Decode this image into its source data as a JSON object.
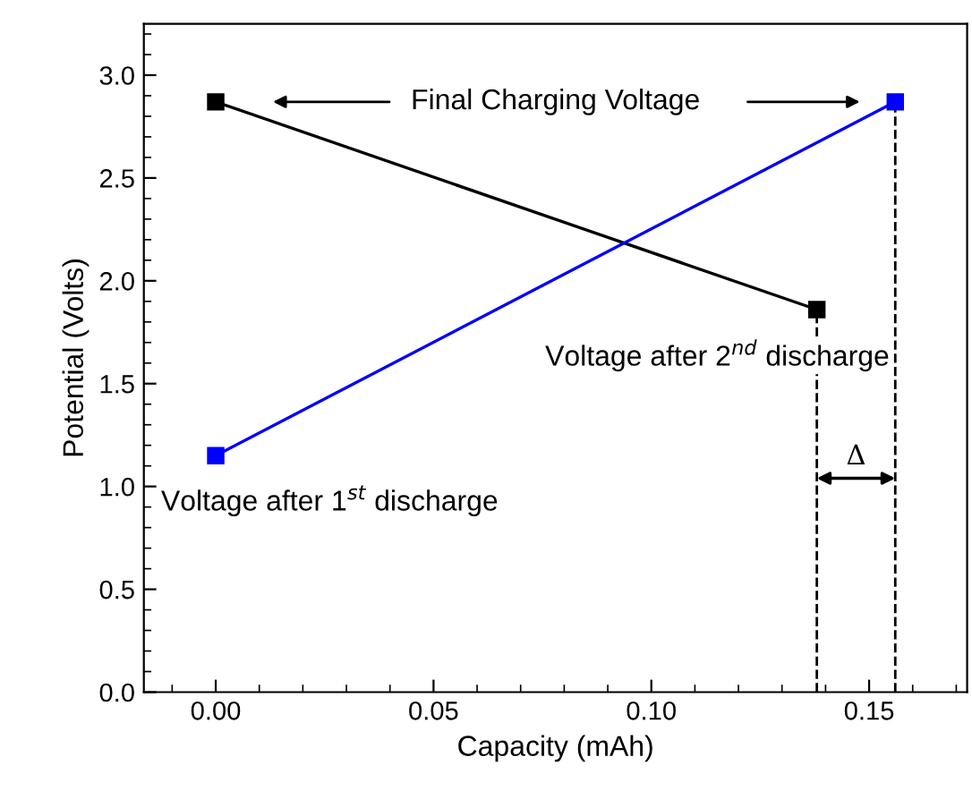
{
  "chart_data": {
    "type": "line",
    "xlabel": "Capacity (mAh)",
    "ylabel": "Potential (Volts)",
    "xlim": [
      -0.0165,
      0.1725
    ],
    "ylim": [
      0,
      3.25
    ],
    "xticks": [
      {
        "value": 0,
        "label": "0.00"
      },
      {
        "value": 0.05,
        "label": "0.05"
      },
      {
        "value": 0.1,
        "label": "0.10"
      },
      {
        "value": 0.15,
        "label": "0.15"
      }
    ],
    "yticks": [
      {
        "value": 0,
        "label": "0.0"
      },
      {
        "value": 0.5,
        "label": "0.5"
      },
      {
        "value": 1,
        "label": "1.0"
      },
      {
        "value": 1.5,
        "label": "1.5"
      },
      {
        "value": 2,
        "label": "2.0"
      },
      {
        "value": 2.5,
        "label": "2.5"
      },
      {
        "value": 3,
        "label": "3.0"
      }
    ],
    "series": [
      {
        "color": "#000000",
        "x": [
          0,
          0.138
        ],
        "values": [
          2.87,
          1.86
        ]
      },
      {
        "color": "#0000ff",
        "x": [
          0,
          0.156
        ],
        "values": [
          1.15,
          2.87
        ]
      }
    ],
    "marker": "square",
    "line_style": "solid",
    "grid": false,
    "legend": false,
    "ref_lines": [
      {
        "axis": "x",
        "value": 0.138,
        "color": "#000000",
        "line_style": "dashed"
      },
      {
        "axis": "x",
        "value": 0.156,
        "color": "#000000",
        "line_style": "dashed"
      }
    ],
    "annotations": [
      "Final Charging Voltage",
      {
        "text": "Voltage after 2$^{nd}$ discharge",
        "x": 0.138,
        "y": 1.86
      },
      {
        "text": "Voltage after 1$^{st}$ discharge",
        "x": 0,
        "y": 1.15
      },
      "Δ"
    ]
  }
}
